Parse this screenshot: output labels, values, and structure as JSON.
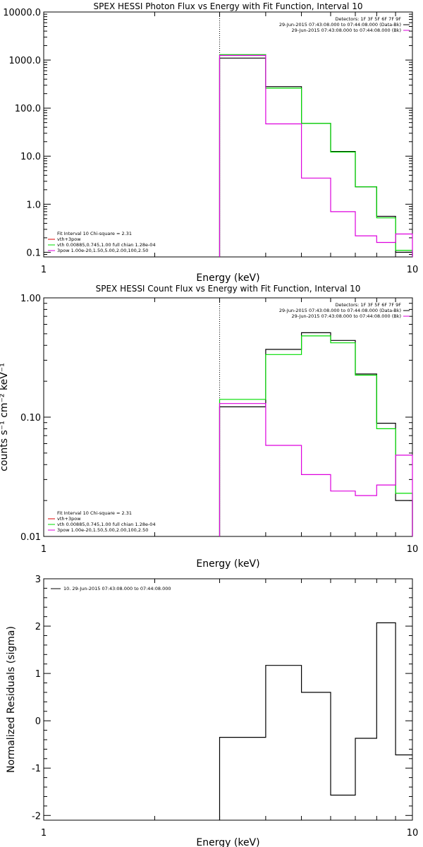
{
  "chart_data": [
    {
      "type": "line",
      "title": "SPEX HESSI Photon Flux vs Energy with Fit Function, Interval 10",
      "xlabel": "Energy (keV)",
      "ylabel": "",
      "xscale": "log",
      "yscale": "log",
      "xlim": [
        1,
        10
      ],
      "ylim": [
        0.08,
        10000
      ],
      "xticks": [
        {
          "v": 1,
          "label": "1"
        },
        {
          "v": 10,
          "label": "10"
        }
      ],
      "yticks": [
        {
          "v": 10000,
          "label": "10000.0"
        },
        {
          "v": 1000,
          "label": "1000.0"
        },
        {
          "v": 100,
          "label": "100.0"
        },
        {
          "v": 10,
          "label": "10.0"
        },
        {
          "v": 1,
          "label": "1.0"
        },
        {
          "v": 0.1,
          "label": "0.1"
        }
      ],
      "vline_x": 3.0,
      "bin_edges": [
        3.0,
        4.0,
        5.0,
        6.0,
        7.0,
        8.0,
        9.0,
        10.0
      ],
      "series": [
        {
          "color": "#000000",
          "values": [
            1100,
            280,
            48,
            12.5,
            2.3,
            0.56,
            0.1
          ]
        },
        {
          "color": "#00dd00",
          "values": [
            1300,
            260,
            48,
            12.2,
            2.3,
            0.52,
            0.11
          ]
        },
        {
          "color": "#dd00dd",
          "values": [
            1250,
            47,
            3.5,
            0.7,
            0.22,
            0.16,
            0.24
          ]
        }
      ],
      "legend_top_right": [
        {
          "text": "Detectors: 1F 3F 5F 6F 7F 9F",
          "color": ""
        },
        {
          "text": "29-Jun-2015 07:43:08.000 to 07:44:08.000 (Data-Bk)",
          "color": "#000000"
        },
        {
          "text": "29-Jun-2015 07:43:08.000 to 07:44:08.000 (Bk)",
          "color": "#dd00dd"
        }
      ],
      "legend_bottom_left": [
        {
          "text": "Fit Interval 10   Chi-square = 2.31",
          "color": ""
        },
        {
          "text": "vth+3pow",
          "color": "#dd0000"
        },
        {
          "text": "vth 0.00885,0.745,1.00  full chian 1.28e-04",
          "color": "#00dd00"
        },
        {
          "text": "3pow 1.00e-20,1.50,5.00,2.00,100,2.50",
          "color": "#dd00dd"
        }
      ]
    },
    {
      "type": "line",
      "title": "SPEX HESSI Count Flux vs Energy with Fit Function, Interval 10",
      "xlabel": "Energy (keV)",
      "ylabel": "counts s⁻¹ cm⁻² keV⁻¹",
      "xscale": "log",
      "yscale": "log",
      "xlim": [
        1,
        10
      ],
      "ylim": [
        0.01,
        1.0
      ],
      "xticks": [
        {
          "v": 1,
          "label": "1"
        },
        {
          "v": 10,
          "label": "10"
        }
      ],
      "yticks": [
        {
          "v": 1.0,
          "label": "1.00"
        },
        {
          "v": 0.1,
          "label": "0.10"
        },
        {
          "v": 0.01,
          "label": "0.01"
        }
      ],
      "vline_x": 3.0,
      "bin_edges": [
        3.0,
        4.0,
        5.0,
        6.0,
        7.0,
        8.0,
        9.0,
        10.0
      ],
      "series": [
        {
          "color": "#000000",
          "values": [
            0.122,
            0.37,
            0.51,
            0.44,
            0.23,
            0.089,
            0.02
          ]
        },
        {
          "color": "#00dd00",
          "values": [
            0.141,
            0.335,
            0.48,
            0.42,
            0.225,
            0.08,
            0.023
          ]
        },
        {
          "color": "#dd00dd",
          "values": [
            0.13,
            0.058,
            0.033,
            0.024,
            0.022,
            0.027,
            0.048
          ]
        }
      ],
      "legend_top_right": [
        {
          "text": "Detectors: 1F 3F 5F 6F 7F 9F",
          "color": ""
        },
        {
          "text": "29-Jun-2015 07:43:08.000 to 07:44:08.000 (Data-Bk)",
          "color": "#000000"
        },
        {
          "text": "29-Jun-2015 07:43:08.000 to 07:44:08.000 (Bk)",
          "color": "#dd00dd"
        }
      ],
      "legend_bottom_left": [
        {
          "text": "Fit Interval 10   Chi-square = 2.31",
          "color": ""
        },
        {
          "text": "vth+3pow",
          "color": "#dd0000"
        },
        {
          "text": "vth 0.00885,0.745,1.00  full chian 1.28e-04",
          "color": "#00dd00"
        },
        {
          "text": "3pow 1.00e-20,1.50,5.00,2.00,100,2.50",
          "color": "#dd00dd"
        }
      ]
    },
    {
      "type": "line",
      "title": "",
      "xlabel": "Energy (keV)",
      "ylabel": "Normalized Residuals (sigma)",
      "xscale": "log",
      "yscale": "linear",
      "xlim": [
        1,
        10
      ],
      "ylim": [
        -2.1,
        3.0
      ],
      "xticks": [
        {
          "v": 1,
          "label": "1"
        },
        {
          "v": 10,
          "label": "10"
        }
      ],
      "yticks": [
        {
          "v": 3,
          "label": "3"
        },
        {
          "v": 2,
          "label": "2"
        },
        {
          "v": 1,
          "label": "1"
        },
        {
          "v": 0,
          "label": "0"
        },
        {
          "v": -1,
          "label": "-1"
        },
        {
          "v": -2,
          "label": "-2"
        }
      ],
      "vline_x": null,
      "bin_edges": [
        3.0,
        4.0,
        5.0,
        6.0,
        7.0,
        8.0,
        9.0,
        10.0
      ],
      "series": [
        {
          "color": "#000000",
          "values": [
            -0.35,
            1.17,
            0.6,
            -1.57,
            -0.37,
            2.07,
            -0.72
          ]
        }
      ],
      "legend_top_right": [],
      "legend_bottom_left": [],
      "legend_top_left": [
        {
          "text": "10. 29-Jun-2015 07:43:08.000 to 07:44:08.000",
          "color": "#000000"
        }
      ]
    }
  ]
}
